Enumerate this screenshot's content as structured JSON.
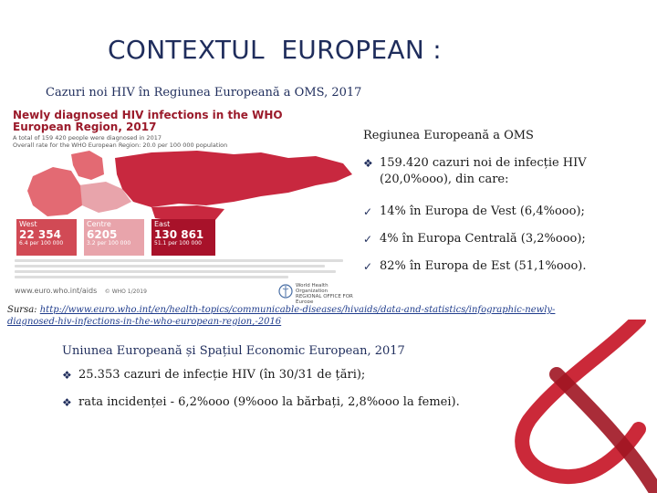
{
  "title": "CONTEXTUL  EUROPEAN :",
  "subtitle": "Cazuri noi HIV în Regiunea  Europeană a OMS, 2017",
  "infographic": {
    "title": "Newly diagnosed HIV infections in the WHO European Region, 2017",
    "subtitle": "A total of 159 420 people were diagnosed in 2017",
    "subtitle2": "Overall rate for the WHO European Region: 20.0 per 100 000 population",
    "regions": [
      {
        "name": "West",
        "cases": "22 354",
        "rate": "6.4 per 100 000"
      },
      {
        "name": "Centre",
        "cases": "6205",
        "rate": "3.2 per 100 000"
      },
      {
        "name": "East",
        "cases": "130 861",
        "rate": "51.1 per 100 000"
      }
    ],
    "url": "www.euro.who.int/aids",
    "copyright": "© WHO 1/2019",
    "logo_text": "World Health Organization",
    "logo_sub": "REGIONAL OFFICE FOR Europe",
    "colors": {
      "west": "#d14a55",
      "central": "#e8a4ab",
      "east": "#a8122a",
      "map_east": "#c8283f",
      "map_west": "#e36a73",
      "map_central": "#e8a4ab"
    }
  },
  "right_column": {
    "heading": "Regiunea Europeană a OMS",
    "main_bullet": "159.420 cazuri noi de infecție HIV (20,0%ooo), din care:",
    "sub_bullets": [
      "14% în Europa de Vest (6,4%ooo);",
      "4% în Europa Centrală (3,2%ooo);",
      "82% în Europa de Est (51,1%ooo)."
    ]
  },
  "source": {
    "label": "Sursa:",
    "url": "http://www.euro.who.int/en/health-topics/communicable-diseases/hivaids/data-and-statistics/infographic-newly-diagnosed-hiv-infections-in-the-who-european-region,-2016"
  },
  "eu_section": {
    "heading": "Uniunea Europeană și Spațiul Economic European, 2017",
    "bullets": [
      "25.353 cazuri de infecție HIV (în 30/31 de țări);",
      "rata incidenței - 6,2%ooo  (9%ooo la bărbați, 2,8%ooo la femei)."
    ]
  },
  "accent_color": "#1f2d5c",
  "ribbon_color": "#c81e2e",
  "icons": {
    "diamond": "diamond-bullet-icon",
    "check": "check-bullet-icon",
    "ribbon": "aids-ribbon-icon"
  }
}
